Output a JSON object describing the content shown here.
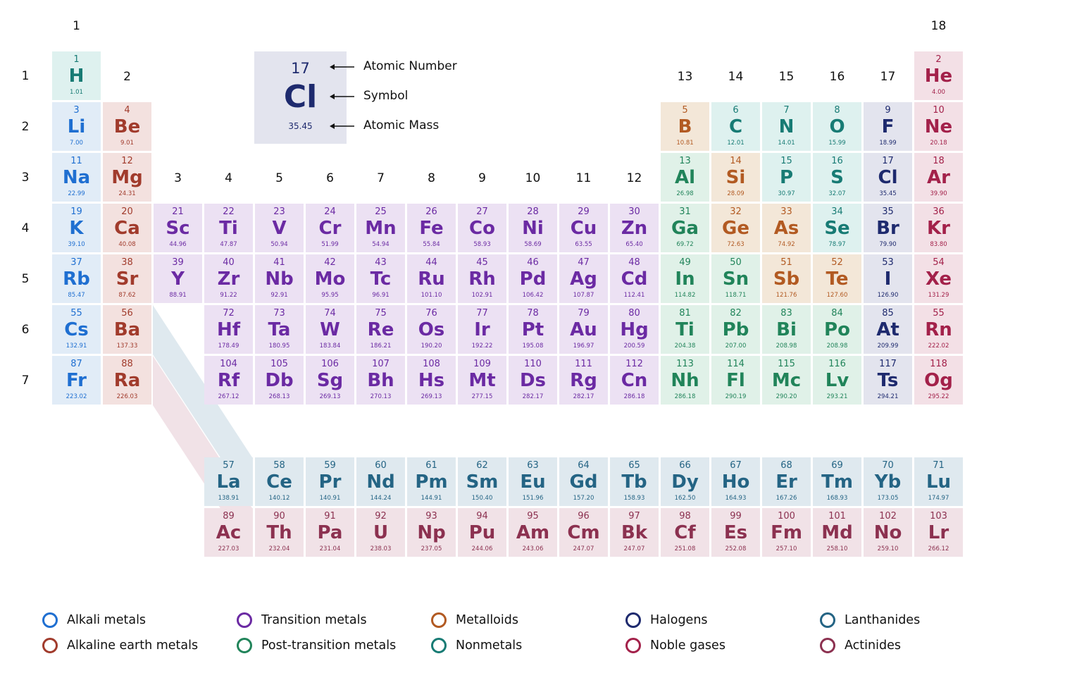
{
  "group_labels": [
    "1",
    "2",
    "3",
    "4",
    "5",
    "6",
    "7",
    "8",
    "9",
    "10",
    "11",
    "12",
    "13",
    "14",
    "15",
    "16",
    "17",
    "18"
  ],
  "period_labels": [
    "1",
    "2",
    "3",
    "4",
    "5",
    "6",
    "7"
  ],
  "key": {
    "number": "17",
    "symbol": "Cl",
    "mass": "35.45",
    "number_label": "Atomic Number",
    "symbol_label": "Symbol",
    "mass_label": "Atomic Mass"
  },
  "categories": {
    "alkali": {
      "label": "Alkali metals",
      "color": "#1f6fd1",
      "bg": "#e1ecf7"
    },
    "alkaline": {
      "label": "Alkaline earth metals",
      "color": "#a13b2c",
      "bg": "#f3e1df"
    },
    "transition": {
      "label": "Transition metals",
      "color": "#6b2aa3",
      "bg": "#ece1f3"
    },
    "post": {
      "label": "Post-transition metals",
      "color": "#21845a",
      "bg": "#e0f1e8"
    },
    "metalloid": {
      "label": "Metalloids",
      "color": "#b25a22",
      "bg": "#f3e7d8"
    },
    "nonmetal": {
      "label": "Nonmetals",
      "color": "#177b74",
      "bg": "#def1ef"
    },
    "halogen": {
      "label": "Halogens",
      "color": "#1e2a6e",
      "bg": "#e3e4ee"
    },
    "noble": {
      "label": "Noble gases",
      "color": "#a3214a",
      "bg": "#f3e0e6"
    },
    "lanthanide": {
      "label": "Lanthanides",
      "color": "#246484",
      "bg": "#dfe9ef"
    },
    "actinide": {
      "label": "Actinides",
      "color": "#8c3150",
      "bg": "#f1e2e7"
    }
  },
  "legend": [
    [
      "alkali",
      "alkaline"
    ],
    [
      "transition",
      "post"
    ],
    [
      "metalloid",
      "nonmetal"
    ],
    [
      "halogen",
      "noble"
    ],
    [
      "lanthanide",
      "actinide"
    ]
  ],
  "elements": [
    {
      "n": "1",
      "s": "H",
      "m": "1.01",
      "c": "nonmetal",
      "g": 1,
      "p": 1
    },
    {
      "n": "2",
      "s": "He",
      "m": "4.00",
      "c": "noble",
      "g": 18,
      "p": 1
    },
    {
      "n": "3",
      "s": "Li",
      "m": "7.00",
      "c": "alkali",
      "g": 1,
      "p": 2
    },
    {
      "n": "4",
      "s": "Be",
      "m": "9.01",
      "c": "alkaline",
      "g": 2,
      "p": 2
    },
    {
      "n": "5",
      "s": "B",
      "m": "10.81",
      "c": "metalloid",
      "g": 13,
      "p": 2
    },
    {
      "n": "6",
      "s": "C",
      "m": "12.01",
      "c": "nonmetal",
      "g": 14,
      "p": 2
    },
    {
      "n": "7",
      "s": "N",
      "m": "14.01",
      "c": "nonmetal",
      "g": 15,
      "p": 2
    },
    {
      "n": "8",
      "s": "O",
      "m": "15.99",
      "c": "nonmetal",
      "g": 16,
      "p": 2
    },
    {
      "n": "9",
      "s": "F",
      "m": "18.99",
      "c": "halogen",
      "g": 17,
      "p": 2
    },
    {
      "n": "10",
      "s": "Ne",
      "m": "20.18",
      "c": "noble",
      "g": 18,
      "p": 2
    },
    {
      "n": "11",
      "s": "Na",
      "m": "22.99",
      "c": "alkali",
      "g": 1,
      "p": 3
    },
    {
      "n": "12",
      "s": "Mg",
      "m": "24.31",
      "c": "alkaline",
      "g": 2,
      "p": 3
    },
    {
      "n": "13",
      "s": "Al",
      "m": "26.98",
      "c": "post",
      "g": 13,
      "p": 3
    },
    {
      "n": "14",
      "s": "Si",
      "m": "28.09",
      "c": "metalloid",
      "g": 14,
      "p": 3
    },
    {
      "n": "15",
      "s": "P",
      "m": "30.97",
      "c": "nonmetal",
      "g": 15,
      "p": 3
    },
    {
      "n": "16",
      "s": "S",
      "m": "32.07",
      "c": "nonmetal",
      "g": 16,
      "p": 3
    },
    {
      "n": "17",
      "s": "Cl",
      "m": "35.45",
      "c": "halogen",
      "g": 17,
      "p": 3
    },
    {
      "n": "18",
      "s": "Ar",
      "m": "39.90",
      "c": "noble",
      "g": 18,
      "p": 3
    },
    {
      "n": "19",
      "s": "K",
      "m": "39.10",
      "c": "alkali",
      "g": 1,
      "p": 4
    },
    {
      "n": "20",
      "s": "Ca",
      "m": "40.08",
      "c": "alkaline",
      "g": 2,
      "p": 4
    },
    {
      "n": "21",
      "s": "Sc",
      "m": "44.96",
      "c": "transition",
      "g": 3,
      "p": 4
    },
    {
      "n": "22",
      "s": "Ti",
      "m": "47.87",
      "c": "transition",
      "g": 4,
      "p": 4
    },
    {
      "n": "23",
      "s": "V",
      "m": "50.94",
      "c": "transition",
      "g": 5,
      "p": 4
    },
    {
      "n": "24",
      "s": "Cr",
      "m": "51.99",
      "c": "transition",
      "g": 6,
      "p": 4
    },
    {
      "n": "25",
      "s": "Mn",
      "m": "54.94",
      "c": "transition",
      "g": 7,
      "p": 4
    },
    {
      "n": "26",
      "s": "Fe",
      "m": "55.84",
      "c": "transition",
      "g": 8,
      "p": 4
    },
    {
      "n": "27",
      "s": "Co",
      "m": "58.93",
      "c": "transition",
      "g": 9,
      "p": 4
    },
    {
      "n": "28",
      "s": "Ni",
      "m": "58.69",
      "c": "transition",
      "g": 10,
      "p": 4
    },
    {
      "n": "29",
      "s": "Cu",
      "m": "63.55",
      "c": "transition",
      "g": 11,
      "p": 4
    },
    {
      "n": "30",
      "s": "Zn",
      "m": "65.40",
      "c": "transition",
      "g": 12,
      "p": 4
    },
    {
      "n": "31",
      "s": "Ga",
      "m": "69.72",
      "c": "post",
      "g": 13,
      "p": 4
    },
    {
      "n": "32",
      "s": "Ge",
      "m": "72.63",
      "c": "metalloid",
      "g": 14,
      "p": 4
    },
    {
      "n": "33",
      "s": "As",
      "m": "74.92",
      "c": "metalloid",
      "g": 15,
      "p": 4
    },
    {
      "n": "34",
      "s": "Se",
      "m": "78.97",
      "c": "nonmetal",
      "g": 16,
      "p": 4
    },
    {
      "n": "35",
      "s": "Br",
      "m": "79.90",
      "c": "halogen",
      "g": 17,
      "p": 4
    },
    {
      "n": "36",
      "s": "Kr",
      "m": "83.80",
      "c": "noble",
      "g": 18,
      "p": 4
    },
    {
      "n": "37",
      "s": "Rb",
      "m": "85.47",
      "c": "alkali",
      "g": 1,
      "p": 5
    },
    {
      "n": "38",
      "s": "Sr",
      "m": "87.62",
      "c": "alkaline",
      "g": 2,
      "p": 5
    },
    {
      "n": "39",
      "s": "Y",
      "m": "88.91",
      "c": "transition",
      "g": 3,
      "p": 5
    },
    {
      "n": "40",
      "s": "Zr",
      "m": "91.22",
      "c": "transition",
      "g": 4,
      "p": 5
    },
    {
      "n": "41",
      "s": "Nb",
      "m": "92.91",
      "c": "transition",
      "g": 5,
      "p": 5
    },
    {
      "n": "42",
      "s": "Mo",
      "m": "95.95",
      "c": "transition",
      "g": 6,
      "p": 5
    },
    {
      "n": "43",
      "s": "Tc",
      "m": "96.91",
      "c": "transition",
      "g": 7,
      "p": 5
    },
    {
      "n": "44",
      "s": "Ru",
      "m": "101.10",
      "c": "transition",
      "g": 8,
      "p": 5
    },
    {
      "n": "45",
      "s": "Rh",
      "m": "102.91",
      "c": "transition",
      "g": 9,
      "p": 5
    },
    {
      "n": "46",
      "s": "Pd",
      "m": "106.42",
      "c": "transition",
      "g": 10,
      "p": 5
    },
    {
      "n": "47",
      "s": "Ag",
      "m": "107.87",
      "c": "transition",
      "g": 11,
      "p": 5
    },
    {
      "n": "48",
      "s": "Cd",
      "m": "112.41",
      "c": "transition",
      "g": 12,
      "p": 5
    },
    {
      "n": "49",
      "s": "In",
      "m": "114.82",
      "c": "post",
      "g": 13,
      "p": 5
    },
    {
      "n": "50",
      "s": "Sn",
      "m": "118.71",
      "c": "post",
      "g": 14,
      "p": 5
    },
    {
      "n": "51",
      "s": "Sb",
      "m": "121.76",
      "c": "metalloid",
      "g": 15,
      "p": 5
    },
    {
      "n": "52",
      "s": "Te",
      "m": "127.60",
      "c": "metalloid",
      "g": 16,
      "p": 5
    },
    {
      "n": "53",
      "s": "I",
      "m": "126.90",
      "c": "halogen",
      "g": 17,
      "p": 5
    },
    {
      "n": "54",
      "s": "Xe",
      "m": "131.29",
      "c": "noble",
      "g": 18,
      "p": 5
    },
    {
      "n": "55",
      "s": "Cs",
      "m": "132.91",
      "c": "alkali",
      "g": 1,
      "p": 6
    },
    {
      "n": "56",
      "s": "Ba",
      "m": "137.33",
      "c": "alkaline",
      "g": 2,
      "p": 6
    },
    {
      "n": "72",
      "s": "Hf",
      "m": "178.49",
      "c": "transition",
      "g": 4,
      "p": 6
    },
    {
      "n": "73",
      "s": "Ta",
      "m": "180.95",
      "c": "transition",
      "g": 5,
      "p": 6
    },
    {
      "n": "74",
      "s": "W",
      "m": "183.84",
      "c": "transition",
      "g": 6,
      "p": 6
    },
    {
      "n": "75",
      "s": "Re",
      "m": "186.21",
      "c": "transition",
      "g": 7,
      "p": 6
    },
    {
      "n": "76",
      "s": "Os",
      "m": "190.20",
      "c": "transition",
      "g": 8,
      "p": 6
    },
    {
      "n": "77",
      "s": "Ir",
      "m": "192.22",
      "c": "transition",
      "g": 9,
      "p": 6
    },
    {
      "n": "78",
      "s": "Pt",
      "m": "195.08",
      "c": "transition",
      "g": 10,
      "p": 6
    },
    {
      "n": "79",
      "s": "Au",
      "m": "196.97",
      "c": "transition",
      "g": 11,
      "p": 6
    },
    {
      "n": "80",
      "s": "Hg",
      "m": "200.59",
      "c": "transition",
      "g": 12,
      "p": 6
    },
    {
      "n": "81",
      "s": "Ti",
      "m": "204.38",
      "c": "post",
      "g": 13,
      "p": 6
    },
    {
      "n": "82",
      "s": "Pb",
      "m": "207.00",
      "c": "post",
      "g": 14,
      "p": 6
    },
    {
      "n": "83",
      "s": "Bi",
      "m": "208.98",
      "c": "post",
      "g": 15,
      "p": 6
    },
    {
      "n": "84",
      "s": "Po",
      "m": "208.98",
      "c": "post",
      "g": 16,
      "p": 6
    },
    {
      "n": "85",
      "s": "At",
      "m": "209.99",
      "c": "halogen",
      "g": 17,
      "p": 6
    },
    {
      "n": "55",
      "s": "Rn",
      "m": "222.02",
      "c": "noble",
      "g": 18,
      "p": 6
    },
    {
      "n": "87",
      "s": "Fr",
      "m": "223.02",
      "c": "alkali",
      "g": 1,
      "p": 7
    },
    {
      "n": "88",
      "s": "Ra",
      "m": "226.03",
      "c": "alkaline",
      "g": 2,
      "p": 7
    },
    {
      "n": "104",
      "s": "Rf",
      "m": "267.12",
      "c": "transition",
      "g": 4,
      "p": 7
    },
    {
      "n": "105",
      "s": "Db",
      "m": "268.13",
      "c": "transition",
      "g": 5,
      "p": 7
    },
    {
      "n": "106",
      "s": "Sg",
      "m": "269.13",
      "c": "transition",
      "g": 6,
      "p": 7
    },
    {
      "n": "107",
      "s": "Bh",
      "m": "270.13",
      "c": "transition",
      "g": 7,
      "p": 7
    },
    {
      "n": "108",
      "s": "Hs",
      "m": "269.13",
      "c": "transition",
      "g": 8,
      "p": 7
    },
    {
      "n": "109",
      "s": "Mt",
      "m": "277.15",
      "c": "transition",
      "g": 9,
      "p": 7
    },
    {
      "n": "110",
      "s": "Ds",
      "m": "282.17",
      "c": "transition",
      "g": 10,
      "p": 7
    },
    {
      "n": "111",
      "s": "Rg",
      "m": "282.17",
      "c": "transition",
      "g": 11,
      "p": 7
    },
    {
      "n": "112",
      "s": "Cn",
      "m": "286.18",
      "c": "transition",
      "g": 12,
      "p": 7
    },
    {
      "n": "113",
      "s": "Nh",
      "m": "286.18",
      "c": "post",
      "g": 13,
      "p": 7
    },
    {
      "n": "114",
      "s": "Fl",
      "m": "290.19",
      "c": "post",
      "g": 14,
      "p": 7
    },
    {
      "n": "115",
      "s": "Mc",
      "m": "290.20",
      "c": "post",
      "g": 15,
      "p": 7
    },
    {
      "n": "116",
      "s": "Lv",
      "m": "293.21",
      "c": "post",
      "g": 16,
      "p": 7
    },
    {
      "n": "117",
      "s": "Ts",
      "m": "294.21",
      "c": "halogen",
      "g": 17,
      "p": 7
    },
    {
      "n": "118",
      "s": "Og",
      "m": "295.22",
      "c": "noble",
      "g": 18,
      "p": 7
    },
    {
      "n": "57",
      "s": "La",
      "m": "138.91",
      "c": "lanthanide",
      "g": 4,
      "p": 9
    },
    {
      "n": "58",
      "s": "Ce",
      "m": "140.12",
      "c": "lanthanide",
      "g": 5,
      "p": 9
    },
    {
      "n": "59",
      "s": "Pr",
      "m": "140.91",
      "c": "lanthanide",
      "g": 6,
      "p": 9
    },
    {
      "n": "60",
      "s": "Nd",
      "m": "144.24",
      "c": "lanthanide",
      "g": 7,
      "p": 9
    },
    {
      "n": "61",
      "s": "Pm",
      "m": "144.91",
      "c": "lanthanide",
      "g": 8,
      "p": 9
    },
    {
      "n": "62",
      "s": "Sm",
      "m": "150.40",
      "c": "lanthanide",
      "g": 9,
      "p": 9
    },
    {
      "n": "63",
      "s": "Eu",
      "m": "151.96",
      "c": "lanthanide",
      "g": 10,
      "p": 9
    },
    {
      "n": "64",
      "s": "Gd",
      "m": "157.20",
      "c": "lanthanide",
      "g": 11,
      "p": 9
    },
    {
      "n": "65",
      "s": "Tb",
      "m": "158.93",
      "c": "lanthanide",
      "g": 12,
      "p": 9
    },
    {
      "n": "66",
      "s": "Dy",
      "m": "162.50",
      "c": "lanthanide",
      "g": 13,
      "p": 9
    },
    {
      "n": "67",
      "s": "Ho",
      "m": "164.93",
      "c": "lanthanide",
      "g": 14,
      "p": 9
    },
    {
      "n": "68",
      "s": "Er",
      "m": "167.26",
      "c": "lanthanide",
      "g": 15,
      "p": 9
    },
    {
      "n": "69",
      "s": "Tm",
      "m": "168.93",
      "c": "lanthanide",
      "g": 16,
      "p": 9
    },
    {
      "n": "70",
      "s": "Yb",
      "m": "173.05",
      "c": "lanthanide",
      "g": 17,
      "p": 9
    },
    {
      "n": "71",
      "s": "Lu",
      "m": "174.97",
      "c": "lanthanide",
      "g": 18,
      "p": 9
    },
    {
      "n": "89",
      "s": "Ac",
      "m": "227.03",
      "c": "actinide",
      "g": 4,
      "p": 10
    },
    {
      "n": "90",
      "s": "Th",
      "m": "232.04",
      "c": "actinide",
      "g": 5,
      "p": 10
    },
    {
      "n": "91",
      "s": "Pa",
      "m": "231.04",
      "c": "actinide",
      "g": 6,
      "p": 10
    },
    {
      "n": "92",
      "s": "U",
      "m": "238.03",
      "c": "actinide",
      "g": 7,
      "p": 10
    },
    {
      "n": "93",
      "s": "Np",
      "m": "237.05",
      "c": "actinide",
      "g": 8,
      "p": 10
    },
    {
      "n": "94",
      "s": "Pu",
      "m": "244.06",
      "c": "actinide",
      "g": 9,
      "p": 10
    },
    {
      "n": "95",
      "s": "Am",
      "m": "243.06",
      "c": "actinide",
      "g": 10,
      "p": 10
    },
    {
      "n": "96",
      "s": "Cm",
      "m": "247.07",
      "c": "actinide",
      "g": 11,
      "p": 10
    },
    {
      "n": "97",
      "s": "Bk",
      "m": "247.07",
      "c": "actinide",
      "g": 12,
      "p": 10
    },
    {
      "n": "98",
      "s": "Cf",
      "m": "251.08",
      "c": "actinide",
      "g": 13,
      "p": 10
    },
    {
      "n": "99",
      "s": "Es",
      "m": "252.08",
      "c": "actinide",
      "g": 14,
      "p": 10
    },
    {
      "n": "100",
      "s": "Fm",
      "m": "257.10",
      "c": "actinide",
      "g": 15,
      "p": 10
    },
    {
      "n": "101",
      "s": "Md",
      "m": "258.10",
      "c": "actinide",
      "g": 16,
      "p": 10
    },
    {
      "n": "102",
      "s": "No",
      "m": "259.10",
      "c": "actinide",
      "g": 17,
      "p": 10
    },
    {
      "n": "103",
      "s": "Lr",
      "m": "266.12",
      "c": "actinide",
      "g": 18,
      "p": 10
    }
  ]
}
